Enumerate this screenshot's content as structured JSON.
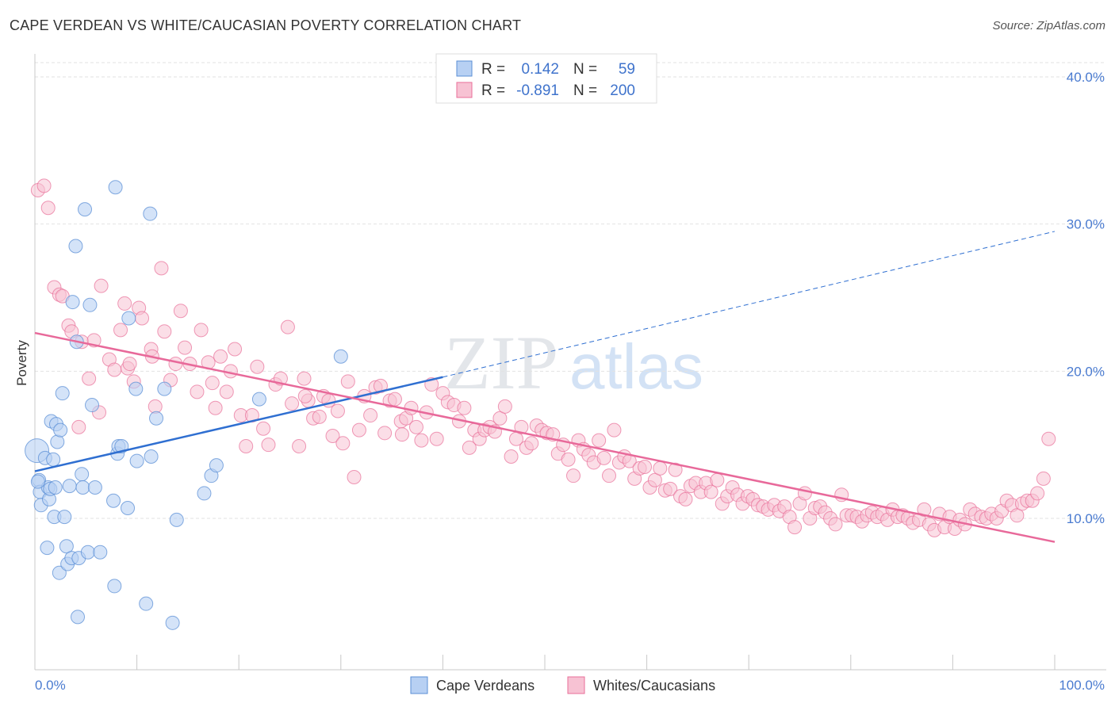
{
  "title": "CAPE VERDEAN VS WHITE/CAUCASIAN POVERTY CORRELATION CHART",
  "source": "Source: ZipAtlas.com",
  "watermark": {
    "zip": "ZIP",
    "atlas": "atlas"
  },
  "colors": {
    "blue": "#5b8fd6",
    "blue_fill": "#b7d0f3",
    "blue_line": "#2f6fd1",
    "pink": "#e86f98",
    "pink_fill": "#f7c2d3",
    "pink_line": "#e8699a",
    "tick_text": "#4a7bd0"
  },
  "legend": {
    "rows": [
      {
        "r_label": "R =",
        "r_value": "0.142",
        "n_label": "N =",
        "n_value": "59"
      },
      {
        "r_label": "R =",
        "r_value": "-0.891",
        "n_label": "N =",
        "n_value": "200"
      }
    ]
  },
  "bottom_legend": [
    {
      "label": "Cape Verdeans"
    },
    {
      "label": "Whites/Caucasians"
    }
  ],
  "chart_data": {
    "type": "scatter",
    "xlabel": "",
    "ylabel": "Poverty",
    "xlim": [
      0,
      100
    ],
    "ylim": [
      0,
      41
    ],
    "x_tick_labels": [
      "0.0%",
      "100.0%"
    ],
    "y_ticks": [
      10,
      20,
      30,
      40
    ],
    "y_tick_labels": [
      "10.0%",
      "20.0%",
      "30.0%",
      "40.0%"
    ],
    "grid": true,
    "series": [
      {
        "name": "Cape Verdeans",
        "color": "blue",
        "trend": {
          "x0": 0,
          "y0": 13.2,
          "x1": 40,
          "y1": 19.6,
          "dash_x1": 100,
          "dash_y1": 29.5
        },
        "points": [
          [
            0.2,
            14.6
          ],
          [
            0.4,
            12.6
          ],
          [
            0.5,
            11.8
          ],
          [
            0.6,
            10.9
          ],
          [
            1.0,
            14.1
          ],
          [
            1.2,
            8.0
          ],
          [
            1.3,
            12.1
          ],
          [
            1.4,
            11.3
          ],
          [
            1.5,
            12.0
          ],
          [
            1.6,
            16.6
          ],
          [
            1.8,
            14.0
          ],
          [
            1.9,
            10.1
          ],
          [
            2.0,
            12.1
          ],
          [
            2.1,
            16.4
          ],
          [
            2.2,
            15.2
          ],
          [
            2.4,
            6.3
          ],
          [
            2.5,
            16.0
          ],
          [
            2.7,
            18.5
          ],
          [
            2.9,
            10.1
          ],
          [
            3.1,
            8.1
          ],
          [
            3.2,
            6.9
          ],
          [
            3.4,
            12.2
          ],
          [
            3.6,
            7.3
          ],
          [
            3.7,
            24.7
          ],
          [
            4.0,
            28.5
          ],
          [
            4.1,
            22.0
          ],
          [
            4.2,
            3.3
          ],
          [
            4.3,
            7.3
          ],
          [
            4.6,
            13.0
          ],
          [
            4.7,
            12.1
          ],
          [
            4.9,
            31.0
          ],
          [
            5.2,
            7.7
          ],
          [
            5.4,
            24.5
          ],
          [
            5.6,
            17.7
          ],
          [
            5.9,
            12.1
          ],
          [
            6.4,
            7.7
          ],
          [
            7.7,
            11.2
          ],
          [
            7.8,
            5.4
          ],
          [
            7.9,
            32.5
          ],
          [
            8.1,
            14.4
          ],
          [
            8.2,
            14.9
          ],
          [
            8.5,
            14.9
          ],
          [
            9.1,
            10.7
          ],
          [
            9.2,
            23.6
          ],
          [
            9.9,
            18.8
          ],
          [
            10.0,
            13.9
          ],
          [
            10.9,
            4.2
          ],
          [
            11.3,
            30.7
          ],
          [
            11.4,
            14.2
          ],
          [
            11.9,
            16.8
          ],
          [
            12.7,
            18.8
          ],
          [
            13.5,
            2.9
          ],
          [
            13.9,
            9.9
          ],
          [
            16.6,
            11.7
          ],
          [
            17.3,
            12.9
          ],
          [
            17.8,
            13.6
          ],
          [
            22.0,
            18.1
          ],
          [
            30.0,
            21.0
          ],
          [
            0.3,
            12.5
          ]
        ]
      },
      {
        "name": "Whites/Caucasians",
        "color": "pink",
        "trend": {
          "x0": 0,
          "y0": 22.6,
          "x1": 100,
          "y1": 8.4
        },
        "points": [
          [
            0.3,
            32.3
          ],
          [
            0.9,
            32.6
          ],
          [
            1.3,
            31.1
          ],
          [
            1.9,
            25.7
          ],
          [
            2.4,
            25.2
          ],
          [
            2.7,
            25.1
          ],
          [
            3.3,
            23.1
          ],
          [
            3.6,
            22.7
          ],
          [
            4.3,
            16.2
          ],
          [
            4.6,
            22.0
          ],
          [
            5.3,
            19.5
          ],
          [
            5.8,
            22.1
          ],
          [
            6.3,
            17.2
          ],
          [
            6.5,
            25.8
          ],
          [
            7.3,
            20.8
          ],
          [
            7.8,
            20.1
          ],
          [
            8.4,
            22.8
          ],
          [
            9.1,
            20.2
          ],
          [
            9.3,
            20.5
          ],
          [
            9.7,
            19.3
          ],
          [
            10.2,
            24.3
          ],
          [
            10.5,
            23.6
          ],
          [
            11.4,
            21.5
          ],
          [
            11.8,
            17.6
          ],
          [
            12.4,
            27.0
          ],
          [
            12.7,
            22.7
          ],
          [
            13.3,
            19.4
          ],
          [
            13.8,
            20.5
          ],
          [
            14.7,
            21.6
          ],
          [
            15.2,
            20.5
          ],
          [
            15.9,
            18.6
          ],
          [
            16.3,
            22.8
          ],
          [
            17.0,
            20.6
          ],
          [
            17.4,
            19.2
          ],
          [
            17.7,
            17.5
          ],
          [
            18.2,
            21.0
          ],
          [
            18.8,
            18.6
          ],
          [
            19.2,
            20.0
          ],
          [
            19.6,
            21.5
          ],
          [
            20.2,
            17.0
          ],
          [
            20.7,
            14.9
          ],
          [
            21.3,
            17.0
          ],
          [
            21.8,
            20.3
          ],
          [
            22.4,
            16.1
          ],
          [
            22.9,
            15.0
          ],
          [
            23.6,
            19.1
          ],
          [
            24.1,
            19.5
          ],
          [
            24.8,
            23.0
          ],
          [
            25.2,
            17.8
          ],
          [
            25.9,
            14.9
          ],
          [
            26.4,
            19.5
          ],
          [
            26.8,
            18.0
          ],
          [
            27.3,
            16.8
          ],
          [
            27.9,
            16.9
          ],
          [
            28.3,
            18.3
          ],
          [
            28.8,
            18.0
          ],
          [
            29.2,
            15.6
          ],
          [
            29.7,
            17.3
          ],
          [
            30.2,
            15.1
          ],
          [
            30.7,
            19.3
          ],
          [
            31.3,
            12.8
          ],
          [
            31.8,
            16.0
          ],
          [
            32.3,
            18.3
          ],
          [
            32.9,
            17.0
          ],
          [
            33.4,
            18.9
          ],
          [
            33.9,
            19.0
          ],
          [
            34.3,
            15.8
          ],
          [
            34.8,
            18.0
          ],
          [
            35.3,
            18.1
          ],
          [
            35.9,
            16.6
          ],
          [
            36.4,
            16.8
          ],
          [
            36.9,
            17.5
          ],
          [
            37.4,
            16.2
          ],
          [
            37.9,
            15.3
          ],
          [
            38.4,
            17.2
          ],
          [
            38.9,
            19.1
          ],
          [
            39.4,
            15.4
          ],
          [
            40.0,
            18.5
          ],
          [
            40.5,
            17.9
          ],
          [
            41.1,
            17.7
          ],
          [
            41.6,
            16.6
          ],
          [
            42.1,
            17.5
          ],
          [
            42.6,
            14.8
          ],
          [
            43.1,
            16.0
          ],
          [
            43.6,
            15.4
          ],
          [
            44.1,
            16.0
          ],
          [
            44.6,
            16.2
          ],
          [
            45.1,
            15.9
          ],
          [
            45.6,
            16.8
          ],
          [
            46.1,
            17.6
          ],
          [
            46.7,
            14.2
          ],
          [
            47.2,
            15.4
          ],
          [
            47.7,
            16.2
          ],
          [
            48.2,
            14.8
          ],
          [
            48.7,
            15.1
          ],
          [
            49.2,
            16.3
          ],
          [
            49.7,
            16.0
          ],
          [
            50.2,
            15.8
          ],
          [
            50.8,
            15.7
          ],
          [
            51.3,
            14.4
          ],
          [
            51.8,
            15.0
          ],
          [
            52.3,
            14.0
          ],
          [
            52.8,
            12.9
          ],
          [
            53.3,
            15.3
          ],
          [
            53.8,
            14.7
          ],
          [
            54.3,
            14.3
          ],
          [
            54.8,
            13.8
          ],
          [
            55.3,
            15.3
          ],
          [
            55.8,
            14.1
          ],
          [
            56.3,
            12.9
          ],
          [
            56.8,
            16.0
          ],
          [
            57.3,
            13.8
          ],
          [
            57.8,
            14.2
          ],
          [
            58.3,
            13.9
          ],
          [
            58.8,
            12.7
          ],
          [
            59.3,
            13.4
          ],
          [
            59.8,
            13.5
          ],
          [
            60.3,
            12.1
          ],
          [
            60.8,
            12.6
          ],
          [
            61.3,
            13.4
          ],
          [
            61.8,
            11.9
          ],
          [
            62.3,
            12.0
          ],
          [
            62.8,
            13.3
          ],
          [
            63.3,
            11.5
          ],
          [
            63.8,
            11.3
          ],
          [
            64.3,
            12.2
          ],
          [
            64.8,
            12.4
          ],
          [
            65.3,
            11.8
          ],
          [
            65.8,
            12.4
          ],
          [
            66.3,
            11.8
          ],
          [
            66.9,
            12.6
          ],
          [
            67.4,
            11.0
          ],
          [
            67.9,
            11.5
          ],
          [
            68.4,
            12.1
          ],
          [
            68.9,
            11.6
          ],
          [
            69.4,
            11.0
          ],
          [
            69.9,
            11.5
          ],
          [
            70.4,
            11.3
          ],
          [
            70.9,
            10.9
          ],
          [
            71.4,
            10.8
          ],
          [
            71.9,
            10.6
          ],
          [
            72.5,
            10.9
          ],
          [
            73.0,
            10.5
          ],
          [
            73.5,
            10.8
          ],
          [
            74.0,
            10.1
          ],
          [
            74.5,
            9.4
          ],
          [
            75.0,
            11.0
          ],
          [
            75.5,
            11.7
          ],
          [
            76.0,
            10.0
          ],
          [
            76.5,
            10.7
          ],
          [
            77.0,
            10.8
          ],
          [
            77.5,
            10.4
          ],
          [
            78.0,
            10.0
          ],
          [
            78.5,
            9.6
          ],
          [
            79.1,
            11.6
          ],
          [
            79.6,
            10.2
          ],
          [
            80.1,
            10.2
          ],
          [
            80.6,
            10.1
          ],
          [
            81.1,
            9.8
          ],
          [
            81.6,
            10.2
          ],
          [
            82.1,
            10.4
          ],
          [
            82.6,
            10.1
          ],
          [
            83.1,
            10.3
          ],
          [
            83.6,
            9.9
          ],
          [
            84.1,
            10.6
          ],
          [
            84.6,
            10.1
          ],
          [
            85.1,
            10.2
          ],
          [
            85.6,
            10.0
          ],
          [
            86.1,
            9.7
          ],
          [
            86.7,
            9.9
          ],
          [
            87.2,
            10.6
          ],
          [
            87.7,
            9.6
          ],
          [
            88.2,
            9.2
          ],
          [
            88.7,
            10.3
          ],
          [
            89.2,
            9.4
          ],
          [
            89.7,
            10.1
          ],
          [
            90.2,
            9.3
          ],
          [
            90.7,
            9.9
          ],
          [
            91.2,
            9.6
          ],
          [
            91.7,
            10.6
          ],
          [
            92.2,
            10.3
          ],
          [
            92.8,
            10.1
          ],
          [
            93.3,
            10.0
          ],
          [
            93.8,
            10.3
          ],
          [
            94.3,
            10.0
          ],
          [
            94.8,
            10.5
          ],
          [
            95.3,
            11.2
          ],
          [
            95.8,
            10.9
          ],
          [
            96.3,
            10.2
          ],
          [
            96.8,
            11.0
          ],
          [
            97.3,
            11.2
          ],
          [
            97.8,
            11.2
          ],
          [
            98.3,
            11.7
          ],
          [
            98.9,
            12.7
          ],
          [
            99.4,
            15.4
          ],
          [
            8.8,
            24.6
          ],
          [
            14.3,
            24.1
          ],
          [
            11.5,
            21.0
          ],
          [
            26.5,
            18.3
          ],
          [
            36.0,
            15.7
          ]
        ]
      }
    ]
  }
}
